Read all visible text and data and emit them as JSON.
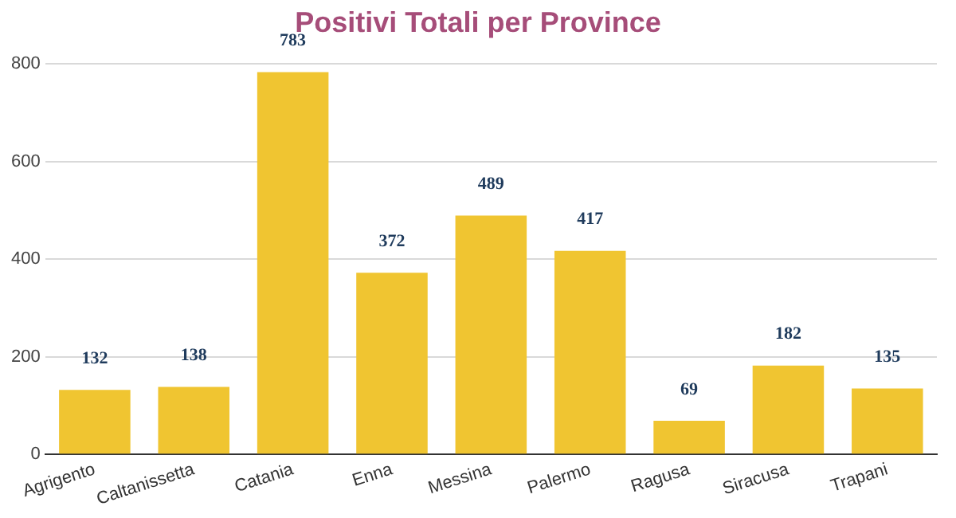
{
  "chart_data": {
    "type": "bar",
    "title": "Positivi Totali per Province",
    "categories": [
      "Agrigento",
      "Caltanissetta",
      "Catania",
      "Enna",
      "Messina",
      "Palermo",
      "Ragusa",
      "Siracusa",
      "Trapani"
    ],
    "values": [
      132,
      138,
      783,
      372,
      489,
      417,
      69,
      182,
      135
    ],
    "color": "#f0c531",
    "ylim": [
      0,
      800
    ],
    "yticks": [
      0,
      200,
      400,
      600,
      800
    ],
    "grid": "y",
    "data_labels": true
  }
}
